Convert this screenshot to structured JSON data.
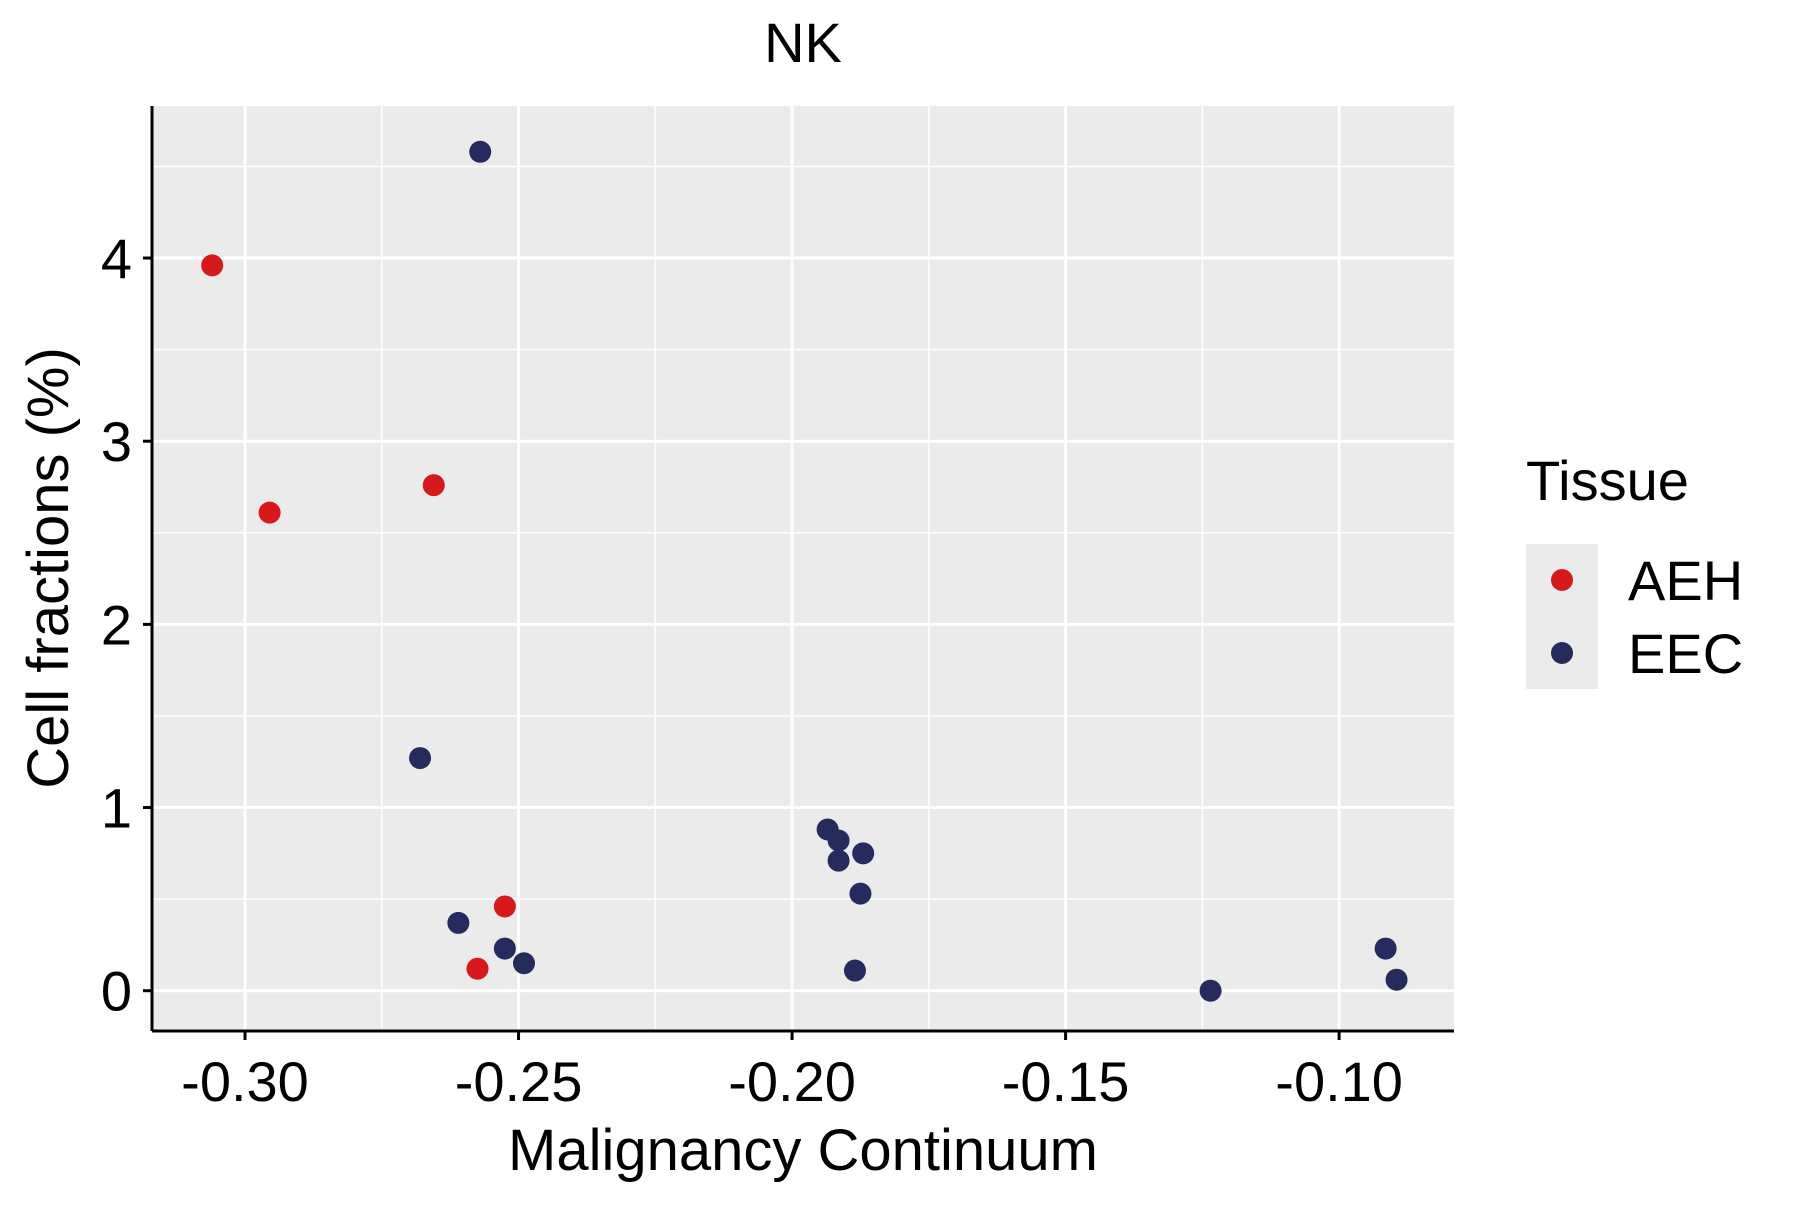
{
  "chart_data": {
    "type": "scatter",
    "title": "NK",
    "xlabel": "Malignancy Continuum",
    "ylabel": "Cell fractions (%)",
    "xlim": [
      -0.317,
      -0.079
    ],
    "ylim": [
      -0.22,
      4.83
    ],
    "x_ticks": [
      -0.3,
      -0.25,
      -0.2,
      -0.15,
      -0.1
    ],
    "x_tick_labels": [
      "-0.30",
      "-0.25",
      "-0.20",
      "-0.15",
      "-0.10"
    ],
    "y_ticks": [
      0,
      1,
      2,
      3,
      4
    ],
    "y_tick_labels": [
      "0",
      "1",
      "2",
      "3",
      "4"
    ],
    "grid": true,
    "legend": {
      "title": "Tissue",
      "position": "right",
      "entries": [
        {
          "label": "AEH",
          "color": "#d7191c"
        },
        {
          "label": "EEC",
          "color": "#262b5e"
        }
      ]
    },
    "series": [
      {
        "name": "AEH",
        "color": "#d7191c",
        "points": [
          {
            "x": -0.306,
            "y": 3.96
          },
          {
            "x": -0.2955,
            "y": 2.61
          },
          {
            "x": -0.2655,
            "y": 2.76
          },
          {
            "x": -0.2525,
            "y": 0.46
          },
          {
            "x": -0.2575,
            "y": 0.12
          }
        ]
      },
      {
        "name": "EEC",
        "color": "#262b5e",
        "points": [
          {
            "x": -0.257,
            "y": 4.58
          },
          {
            "x": -0.268,
            "y": 1.27
          },
          {
            "x": -0.261,
            "y": 0.37
          },
          {
            "x": -0.2525,
            "y": 0.23
          },
          {
            "x": -0.249,
            "y": 0.15
          },
          {
            "x": -0.1935,
            "y": 0.88
          },
          {
            "x": -0.1915,
            "y": 0.82
          },
          {
            "x": -0.1915,
            "y": 0.71
          },
          {
            "x": -0.187,
            "y": 0.75
          },
          {
            "x": -0.1875,
            "y": 0.53
          },
          {
            "x": -0.1885,
            "y": 0.11
          },
          {
            "x": -0.1235,
            "y": 0.0
          },
          {
            "x": -0.0915,
            "y": 0.23
          },
          {
            "x": -0.0895,
            "y": 0.06
          }
        ]
      }
    ]
  },
  "colors": {
    "panel_background": "#ebebeb",
    "grid": "#ffffff",
    "axis_line": "#000000"
  }
}
